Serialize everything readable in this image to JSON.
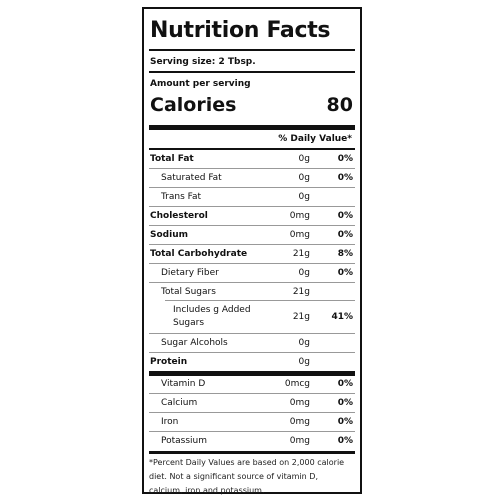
{
  "title": "Nutrition Facts",
  "serving_size": "Serving size: 2 Tbsp.",
  "amount_per_serving": "Amount per serving",
  "calories_label": "Calories",
  "calories_value": "80",
  "daily_value_header": "% Daily Value*",
  "rows": [
    {
      "name": "Total Fat",
      "amount": "0g",
      "dv": "0%"
    },
    {
      "name": "Saturated Fat",
      "amount": "0g",
      "dv": "0%"
    },
    {
      "name": "Trans Fat",
      "amount": "0g",
      "dv": ""
    },
    {
      "name": "Cholesterol",
      "amount": "0mg",
      "dv": "0%"
    },
    {
      "name": "Sodium",
      "amount": "0mg",
      "dv": "0%"
    },
    {
      "name": "Total Carbohydrate",
      "amount": "21g",
      "dv": "8%"
    },
    {
      "name": "Dietary Fiber",
      "amount": "0g",
      "dv": "0%"
    },
    {
      "name": "Total Sugars",
      "amount": "21g",
      "dv": ""
    },
    {
      "name_line1": "Includes g Added",
      "name_line2": "Sugars",
      "amount": "21g",
      "dv": "41%"
    },
    {
      "name": "Sugar Alcohols",
      "amount": "0g",
      "dv": ""
    },
    {
      "name": "Protein",
      "amount": "0g",
      "dv": ""
    },
    {
      "name": "Vitamin D",
      "amount": "0mcg",
      "dv": "0%"
    },
    {
      "name": "Calcium",
      "amount": "0mg",
      "dv": "0%"
    },
    {
      "name": "Iron",
      "amount": "0mg",
      "dv": "0%"
    },
    {
      "name": "Potassium",
      "amount": "0mg",
      "dv": "0%"
    }
  ],
  "footnote": "*Percent Daily Values are based on 2,000 calorie diet. Not a significant source of vitamin D, calcium, iron and potassium."
}
